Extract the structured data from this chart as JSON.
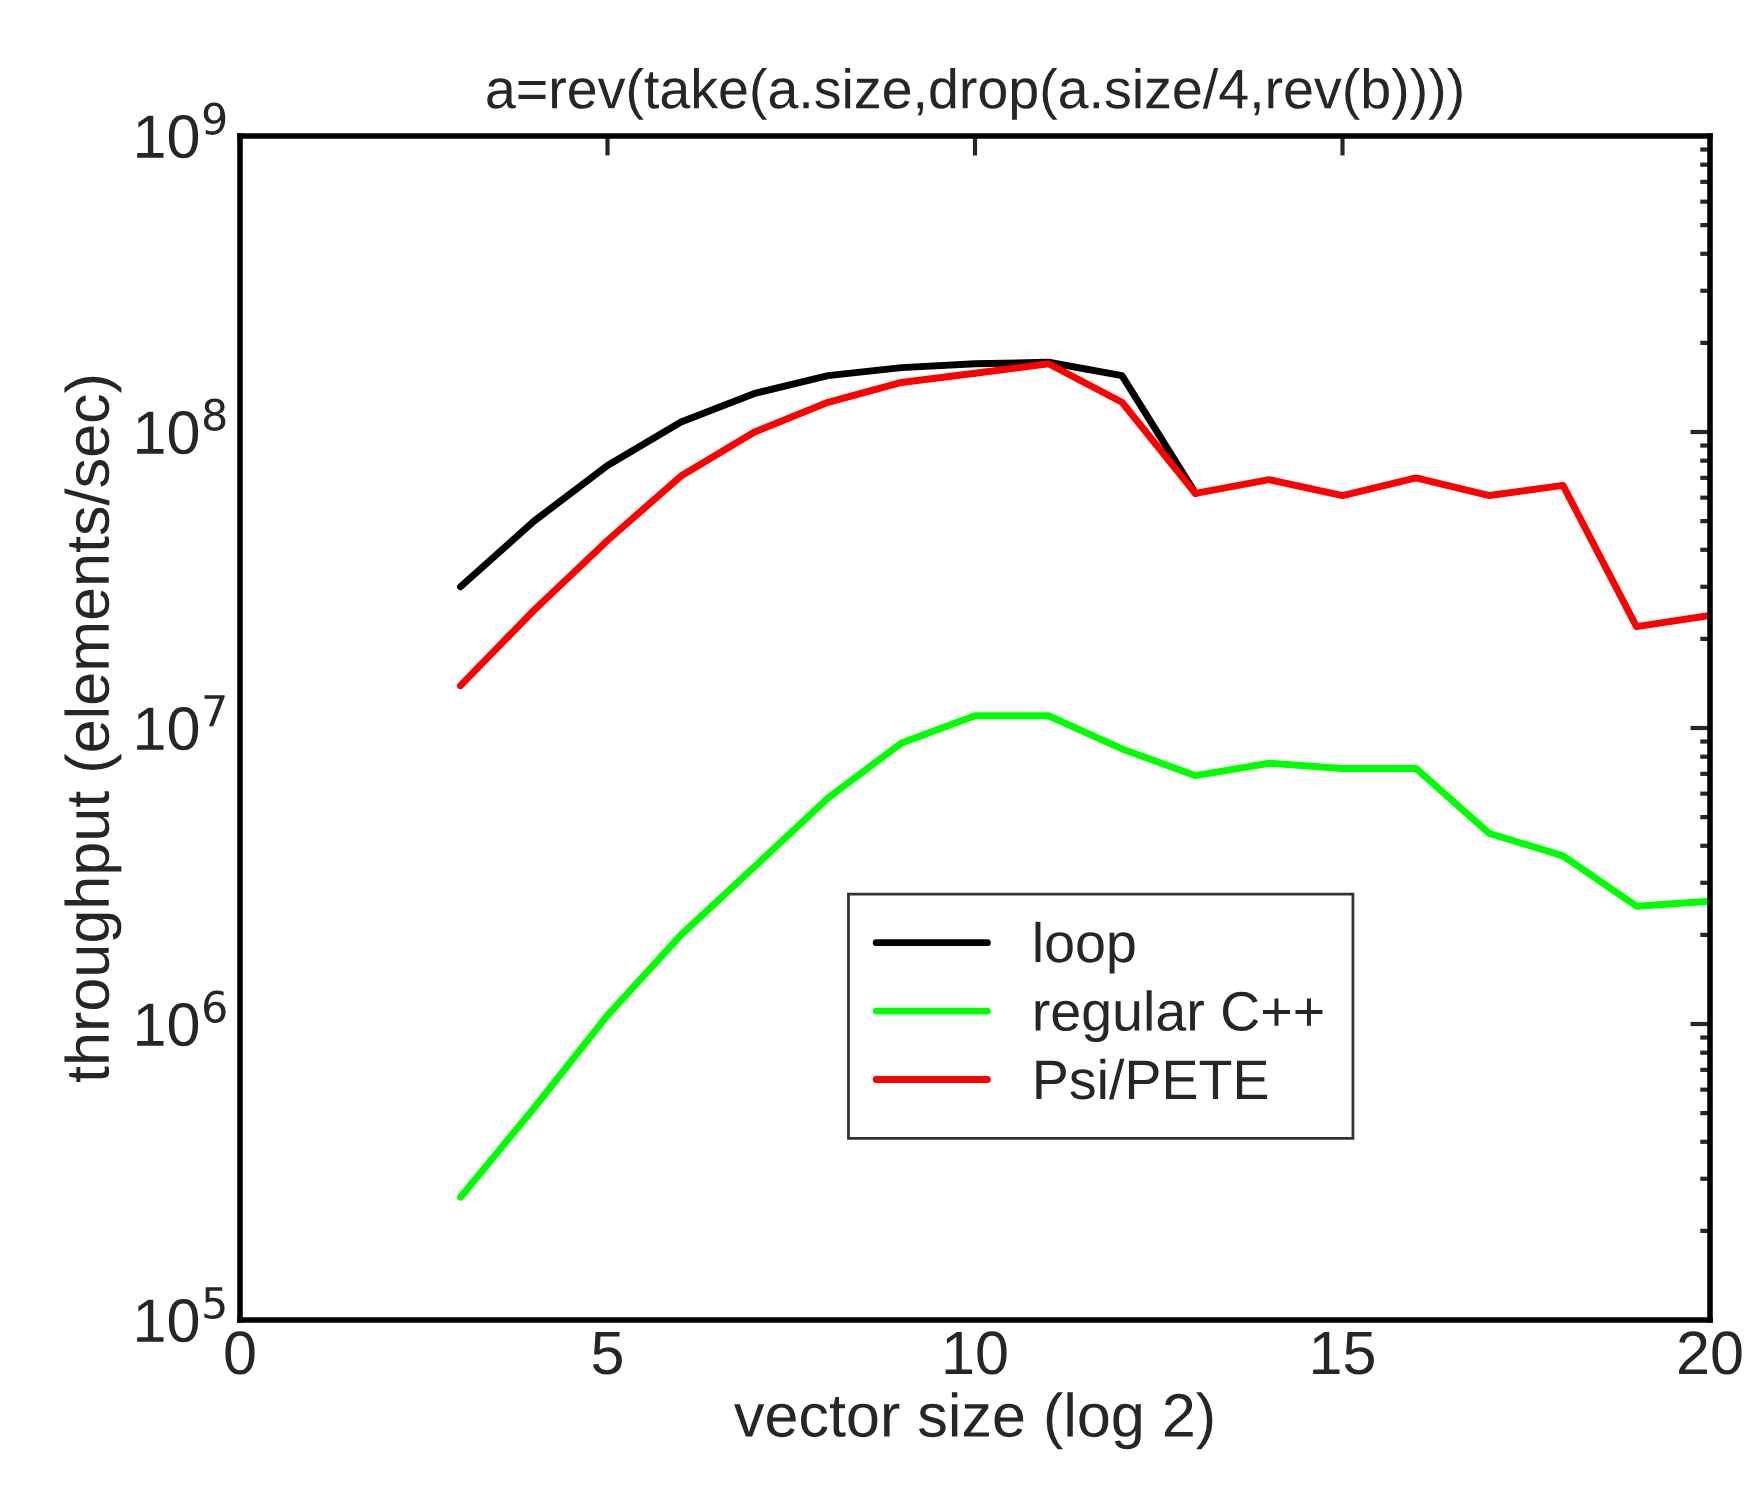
{
  "chart_data": {
    "type": "line",
    "title": "a=rev(take(a.size,drop(a.size/4,rev(b))))",
    "xlabel": "vector size (log 2)",
    "ylabel": "throughput (elements/sec)",
    "log": "y",
    "grid": false,
    "legend": "bottom right",
    "xlim": [
      0,
      20
    ],
    "xticks": [
      0,
      5,
      10,
      15,
      20
    ],
    "ylim": [
      100000,
      1000000000
    ],
    "yticks": [
      {
        "value": 100000,
        "label": "10$^{5}$"
      },
      {
        "value": 1000000,
        "label": "10$^{6}$"
      },
      {
        "value": 10000000,
        "label": "10$^{7}$"
      },
      {
        "value": 100000000,
        "label": "10$^{8}$"
      },
      {
        "value": 1000000000,
        "label": "10$^{9}$"
      }
    ],
    "series": [
      {
        "name": "loop",
        "color": "#000000",
        "x": [
          3,
          4,
          5,
          6,
          7,
          8,
          9,
          10,
          11,
          12,
          13
        ],
        "values": [
          30000000,
          50000000,
          77000000,
          108000000,
          135000000,
          155000000,
          165000000,
          170000000,
          172000000,
          155000000,
          62000000
        ]
      },
      {
        "name": "regular C++",
        "color": "#00ff00",
        "x": [
          3,
          4,
          5,
          6,
          7,
          8,
          9,
          10,
          11,
          12,
          13,
          14,
          15,
          16,
          17,
          18,
          19,
          20
        ],
        "values": [
          260000,
          520000,
          1070000,
          2000000,
          3400000,
          5800000,
          8900000,
          11000000,
          11000000,
          8500000,
          6900000,
          7600000,
          7300000,
          7300000,
          4400000,
          3700000,
          2500000,
          2600000
        ]
      },
      {
        "name": "Psi/PETE",
        "color": "#ff0000",
        "x": [
          3,
          4,
          5,
          6,
          7,
          8,
          9,
          10,
          11,
          12,
          13,
          14,
          15,
          16,
          17,
          18,
          19,
          20
        ],
        "values": [
          13900000,
          25000000,
          43000000,
          71000000,
          100000000,
          126000000,
          147000000,
          158000000,
          170000000,
          126000000,
          62000000,
          69000000,
          61000000,
          70000000,
          61000000,
          66000000,
          22000000,
          24000000
        ]
      }
    ]
  }
}
